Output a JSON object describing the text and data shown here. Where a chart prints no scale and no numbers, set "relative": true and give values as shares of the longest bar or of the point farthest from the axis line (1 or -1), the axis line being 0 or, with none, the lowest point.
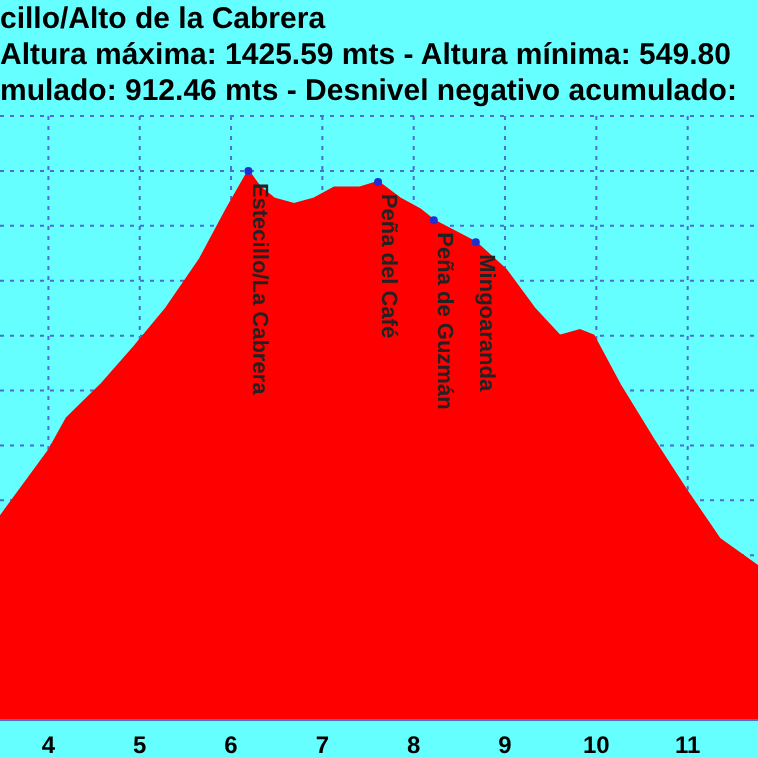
{
  "chart_data": {
    "type": "area",
    "title": "cillo/Alto de la Cabrera",
    "subtitle": "Altura máxima: 1425.59 mts - Altura mínima: 549.80\nmulado: 912.46 mts - Desnivel negativo acumulado:",
    "relative": true,
    "grid": true,
    "marker": "none",
    "xlim": [
      3.47,
      11.77
    ],
    "xticks": [
      4,
      5,
      6,
      7,
      8,
      9,
      10,
      11
    ],
    "x": [
      3.47,
      4.0,
      4.2,
      4.57,
      4.94,
      5.29,
      5.66,
      5.95,
      6.19,
      6.32,
      6.47,
      6.69,
      6.91,
      7.13,
      7.41,
      7.61,
      7.85,
      8.07,
      8.22,
      8.68,
      9.01,
      9.32,
      9.6,
      9.82,
      9.97,
      10.26,
      10.63,
      10.98,
      11.35,
      11.77
    ],
    "series": [
      {
        "color": "#ff0000",
        "values": [
          0.37,
          0.49,
          0.55,
          0.61,
          0.68,
          0.75,
          0.84,
          0.93,
          1.0,
          0.97,
          0.95,
          0.94,
          0.95,
          0.97,
          0.97,
          0.98,
          0.95,
          0.93,
          0.91,
          0.87,
          0.82,
          0.75,
          0.7,
          0.71,
          0.7,
          0.61,
          0.51,
          0.42,
          0.33,
          0.28
        ]
      }
    ],
    "annotations": [
      {
        "text": "Estecillo/La Cabrera",
        "x": 6.19,
        "y": 1.0
      },
      {
        "text": "Peña del Café",
        "x": 7.61,
        "y": 0.98
      },
      {
        "text": "Peña de Guzmán",
        "x": 8.22,
        "y": 0.91
      },
      {
        "text": "Mingoaranda",
        "x": 8.68,
        "y": 0.87
      }
    ]
  }
}
